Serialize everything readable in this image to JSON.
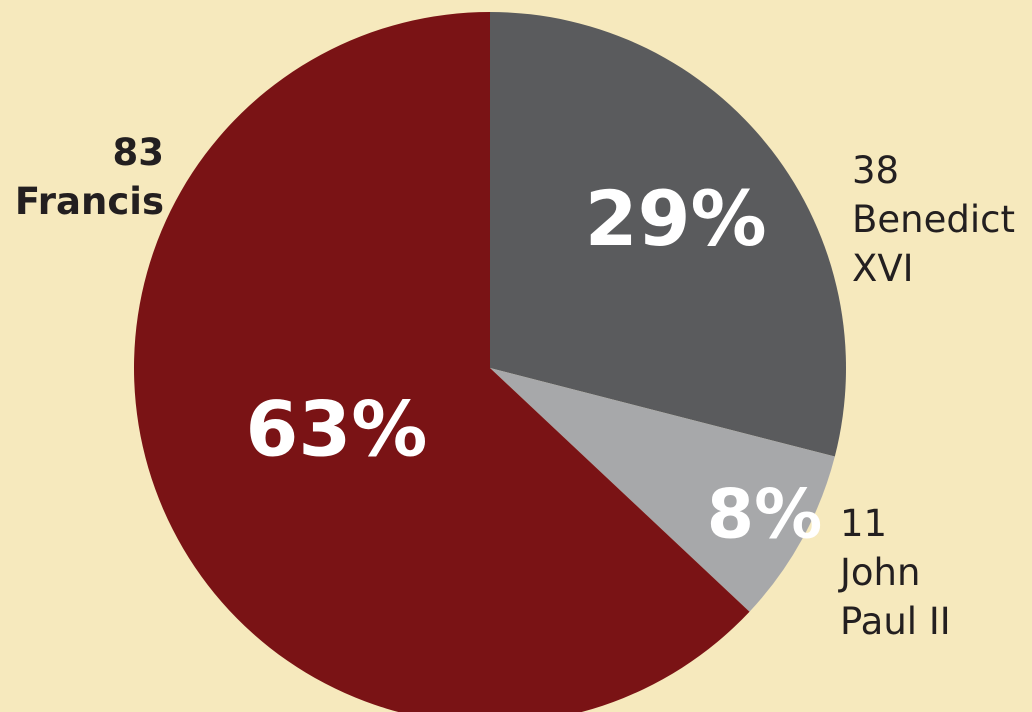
{
  "chart_data": {
    "type": "pie",
    "slices": [
      {
        "name": "Benedict XVI",
        "name_lines": [
          "Benedict",
          "XVI"
        ],
        "count": "38",
        "value": 29,
        "percent_label": "29%",
        "color": "#5a5b5d"
      },
      {
        "name": "John Paul II",
        "name_lines": [
          "John",
          "Paul II"
        ],
        "count": "11",
        "value": 8,
        "percent_label": "8%",
        "color": "#a7a8aa"
      },
      {
        "name": "Francis",
        "name_lines": [
          "Francis"
        ],
        "count": "83",
        "value": 63,
        "percent_label": "63%",
        "color": "#7a1315"
      }
    ],
    "start_angle_deg": 0,
    "direction": "clockwise"
  },
  "colors": {
    "background": "#f6e9bd",
    "label_text": "#231f20",
    "percent_text": "#ffffff"
  }
}
